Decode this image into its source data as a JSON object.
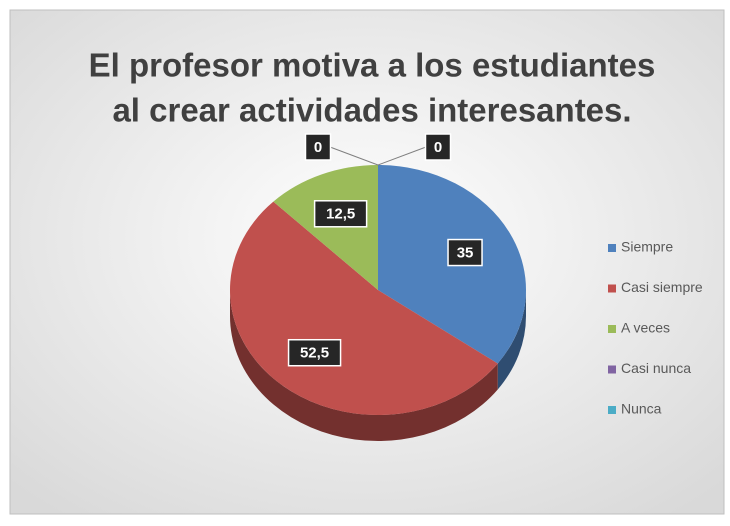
{
  "chart_data": {
    "type": "pie",
    "title": [
      "El profesor motiva a los estudiantes",
      "al crear actividades interesantes."
    ],
    "categories": [
      "Siempre",
      "Casi siempre",
      "A veces",
      "Casi nunca",
      "Nunca"
    ],
    "values": [
      35,
      52.5,
      12.5,
      0,
      0
    ],
    "value_labels": [
      "35",
      "52,5",
      "12,5",
      "0",
      "0"
    ],
    "colors": [
      "#4F81BD",
      "#C0504D",
      "#9BBB59",
      "#8064A2",
      "#4BACC6"
    ],
    "legend": "right"
  }
}
